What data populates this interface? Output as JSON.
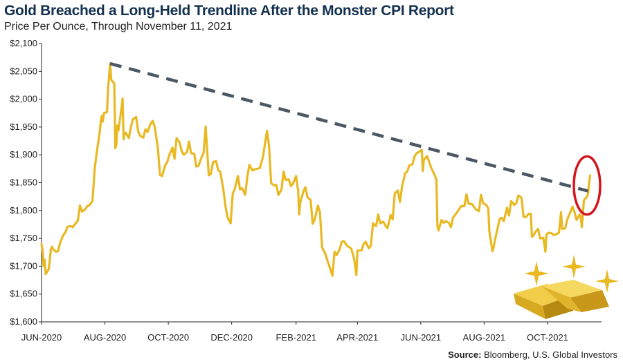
{
  "title": "Gold Breached a Long-Held Trendline After the Monster CPI Report",
  "subtitle": "Price Per Ounce, Through November 11, 2021",
  "source_label": "Source:",
  "source_text": " Bloomberg, U.S. Global Investors",
  "colors": {
    "line": "#e8b923",
    "trend": "#4b5863",
    "circle": "#d4161c",
    "title": "#14314f"
  },
  "icons": [
    "gold-bars-icon",
    "sparkle-icon"
  ],
  "chart_data": {
    "type": "line",
    "title": "Gold Breached a Long-Held Trendline After the Monster CPI Report",
    "subtitle": "Price Per Ounce, Through November 11, 2021",
    "xlabel": "",
    "ylabel": "",
    "ylim": [
      1600,
      2100
    ],
    "xlim": [
      "2020-06-01",
      "2021-11-22"
    ],
    "grid": false,
    "x_tick_labels": [
      {
        "date": "2020-06-01",
        "label": "JUN-2020"
      },
      {
        "date": "2020-08-01",
        "label": "AUG-2020"
      },
      {
        "date": "2020-10-01",
        "label": "OCT-2020"
      },
      {
        "date": "2020-12-01",
        "label": "DEC-2020"
      },
      {
        "date": "2021-02-01",
        "label": "FEB-2021"
      },
      {
        "date": "2021-04-01",
        "label": "APR-2021"
      },
      {
        "date": "2021-06-01",
        "label": "JUN-2021"
      },
      {
        "date": "2021-08-01",
        "label": "AUG-2021"
      },
      {
        "date": "2021-10-01",
        "label": "OCT-2021"
      }
    ],
    "y_tick_labels": [
      "$1,600",
      "$1,650",
      "$1,700",
      "$1,750",
      "$1,800",
      "$1,850",
      "$1,900",
      "$1,950",
      "$2,000",
      "$2,050",
      "$2,100"
    ],
    "y_ticks": [
      1600,
      1650,
      1700,
      1750,
      1800,
      1850,
      1900,
      1950,
      2000,
      2050,
      2100
    ],
    "series": [
      {
        "points": [
          [
            "2020-06-01",
            1740
          ],
          [
            "2020-06-02",
            1728
          ],
          [
            "2020-06-03",
            1700
          ],
          [
            "2020-06-04",
            1712
          ],
          [
            "2020-06-05",
            1686
          ],
          [
            "2020-06-08",
            1695
          ],
          [
            "2020-06-09",
            1712
          ],
          [
            "2020-06-10",
            1730
          ],
          [
            "2020-06-11",
            1735
          ],
          [
            "2020-06-12",
            1731
          ],
          [
            "2020-06-15",
            1726
          ],
          [
            "2020-06-17",
            1727
          ],
          [
            "2020-06-19",
            1743
          ],
          [
            "2020-06-22",
            1756
          ],
          [
            "2020-06-24",
            1761
          ],
          [
            "2020-06-26",
            1771
          ],
          [
            "2020-06-29",
            1772
          ],
          [
            "2020-07-01",
            1770
          ],
          [
            "2020-07-03",
            1775
          ],
          [
            "2020-07-06",
            1782
          ],
          [
            "2020-07-08",
            1809
          ],
          [
            "2020-07-10",
            1798
          ],
          [
            "2020-07-13",
            1802
          ],
          [
            "2020-07-15",
            1808
          ],
          [
            "2020-07-17",
            1809
          ],
          [
            "2020-07-20",
            1817
          ],
          [
            "2020-07-21",
            1842
          ],
          [
            "2020-07-22",
            1871
          ],
          [
            "2020-07-23",
            1887
          ],
          [
            "2020-07-24",
            1902
          ],
          [
            "2020-07-27",
            1941
          ],
          [
            "2020-07-28",
            1960
          ],
          [
            "2020-07-29",
            1970
          ],
          [
            "2020-07-30",
            1960
          ],
          [
            "2020-07-31",
            1975
          ],
          [
            "2020-08-03",
            1977
          ],
          [
            "2020-08-04",
            2019
          ],
          [
            "2020-08-05",
            2042
          ],
          [
            "2020-08-06",
            2064
          ],
          [
            "2020-08-07",
            2035
          ],
          [
            "2020-08-10",
            2028
          ],
          [
            "2020-08-11",
            1912
          ],
          [
            "2020-08-12",
            1918
          ],
          [
            "2020-08-13",
            1953
          ],
          [
            "2020-08-14",
            1944
          ],
          [
            "2020-08-17",
            1985
          ],
          [
            "2020-08-18",
            2001
          ],
          [
            "2020-08-19",
            1928
          ],
          [
            "2020-08-20",
            1939
          ],
          [
            "2020-08-21",
            1940
          ],
          [
            "2020-08-24",
            1930
          ],
          [
            "2020-08-26",
            1950
          ],
          [
            "2020-08-28",
            1964
          ],
          [
            "2020-08-31",
            1968
          ],
          [
            "2020-09-02",
            1942
          ],
          [
            "2020-09-04",
            1934
          ],
          [
            "2020-09-07",
            1931
          ],
          [
            "2020-09-09",
            1946
          ],
          [
            "2020-09-11",
            1941
          ],
          [
            "2020-09-14",
            1956
          ],
          [
            "2020-09-16",
            1961
          ],
          [
            "2020-09-18",
            1950
          ],
          [
            "2020-09-21",
            1912
          ],
          [
            "2020-09-23",
            1864
          ],
          [
            "2020-09-25",
            1862
          ],
          [
            "2020-09-28",
            1881
          ],
          [
            "2020-09-30",
            1887
          ],
          [
            "2020-10-02",
            1900
          ],
          [
            "2020-10-05",
            1913
          ],
          [
            "2020-10-07",
            1893
          ],
          [
            "2020-10-09",
            1930
          ],
          [
            "2020-10-12",
            1922
          ],
          [
            "2020-10-14",
            1906
          ],
          [
            "2020-10-16",
            1900
          ],
          [
            "2020-10-19",
            1905
          ],
          [
            "2020-10-21",
            1924
          ],
          [
            "2020-10-23",
            1903
          ],
          [
            "2020-10-26",
            1902
          ],
          [
            "2020-10-28",
            1879
          ],
          [
            "2020-10-30",
            1880
          ],
          [
            "2020-11-02",
            1895
          ],
          [
            "2020-11-04",
            1903
          ],
          [
            "2020-11-06",
            1951
          ],
          [
            "2020-11-09",
            1863
          ],
          [
            "2020-11-11",
            1866
          ],
          [
            "2020-11-13",
            1887
          ],
          [
            "2020-11-16",
            1889
          ],
          [
            "2020-11-18",
            1872
          ],
          [
            "2020-11-20",
            1870
          ],
          [
            "2020-11-23",
            1837
          ],
          [
            "2020-11-25",
            1808
          ],
          [
            "2020-11-27",
            1788
          ],
          [
            "2020-11-30",
            1777
          ],
          [
            "2020-12-02",
            1830
          ],
          [
            "2020-12-04",
            1839
          ],
          [
            "2020-12-07",
            1862
          ],
          [
            "2020-12-09",
            1838
          ],
          [
            "2020-12-11",
            1840
          ],
          [
            "2020-12-14",
            1828
          ],
          [
            "2020-12-16",
            1860
          ],
          [
            "2020-12-18",
            1882
          ],
          [
            "2020-12-21",
            1872
          ],
          [
            "2020-12-23",
            1874
          ],
          [
            "2020-12-28",
            1876
          ],
          [
            "2020-12-31",
            1895
          ],
          [
            "2021-01-04",
            1943
          ],
          [
            "2021-01-06",
            1915
          ],
          [
            "2021-01-08",
            1849
          ],
          [
            "2021-01-11",
            1845
          ],
          [
            "2021-01-13",
            1846
          ],
          [
            "2021-01-15",
            1828
          ],
          [
            "2021-01-18",
            1838
          ],
          [
            "2021-01-20",
            1870
          ],
          [
            "2021-01-22",
            1855
          ],
          [
            "2021-01-25",
            1856
          ],
          [
            "2021-01-27",
            1844
          ],
          [
            "2021-01-29",
            1848
          ],
          [
            "2021-02-01",
            1862
          ],
          [
            "2021-02-03",
            1835
          ],
          [
            "2021-02-04",
            1793
          ],
          [
            "2021-02-05",
            1814
          ],
          [
            "2021-02-08",
            1834
          ],
          [
            "2021-02-10",
            1842
          ],
          [
            "2021-02-12",
            1824
          ],
          [
            "2021-02-15",
            1819
          ],
          [
            "2021-02-17",
            1776
          ],
          [
            "2021-02-19",
            1784
          ],
          [
            "2021-02-22",
            1809
          ],
          [
            "2021-02-24",
            1797
          ],
          [
            "2021-02-26",
            1734
          ],
          [
            "2021-03-01",
            1723
          ],
          [
            "2021-03-03",
            1711
          ],
          [
            "2021-03-05",
            1700
          ],
          [
            "2021-03-08",
            1683
          ],
          [
            "2021-03-10",
            1726
          ],
          [
            "2021-03-12",
            1720
          ],
          [
            "2021-03-15",
            1731
          ],
          [
            "2021-03-17",
            1744
          ],
          [
            "2021-03-19",
            1745
          ],
          [
            "2021-03-22",
            1737
          ],
          [
            "2021-03-24",
            1734
          ],
          [
            "2021-03-26",
            1732
          ],
          [
            "2021-03-29",
            1712
          ],
          [
            "2021-03-31",
            1684
          ],
          [
            "2021-04-01",
            1728
          ],
          [
            "2021-04-05",
            1728
          ],
          [
            "2021-04-07",
            1740
          ],
          [
            "2021-04-09",
            1744
          ],
          [
            "2021-04-12",
            1732
          ],
          [
            "2021-04-14",
            1737
          ],
          [
            "2021-04-16",
            1777
          ],
          [
            "2021-04-19",
            1772
          ],
          [
            "2021-04-21",
            1793
          ],
          [
            "2021-04-23",
            1777
          ],
          [
            "2021-04-26",
            1780
          ],
          [
            "2021-04-28",
            1773
          ],
          [
            "2021-04-30",
            1768
          ],
          [
            "2021-05-03",
            1792
          ],
          [
            "2021-05-05",
            1784
          ],
          [
            "2021-05-07",
            1831
          ],
          [
            "2021-05-10",
            1836
          ],
          [
            "2021-05-12",
            1815
          ],
          [
            "2021-05-14",
            1843
          ],
          [
            "2021-05-17",
            1867
          ],
          [
            "2021-05-19",
            1870
          ],
          [
            "2021-05-21",
            1881
          ],
          [
            "2021-05-24",
            1883
          ],
          [
            "2021-05-26",
            1897
          ],
          [
            "2021-05-28",
            1903
          ],
          [
            "2021-05-31",
            1906
          ],
          [
            "2021-06-02",
            1909
          ],
          [
            "2021-06-03",
            1871
          ],
          [
            "2021-06-04",
            1891
          ],
          [
            "2021-06-07",
            1898
          ],
          [
            "2021-06-09",
            1888
          ],
          [
            "2021-06-11",
            1877
          ],
          [
            "2021-06-14",
            1865
          ],
          [
            "2021-06-16",
            1856
          ],
          [
            "2021-06-17",
            1773
          ],
          [
            "2021-06-18",
            1764
          ],
          [
            "2021-06-21",
            1783
          ],
          [
            "2021-06-23",
            1778
          ],
          [
            "2021-06-25",
            1781
          ],
          [
            "2021-06-28",
            1778
          ],
          [
            "2021-06-30",
            1770
          ],
          [
            "2021-07-02",
            1787
          ],
          [
            "2021-07-06",
            1797
          ],
          [
            "2021-07-08",
            1803
          ],
          [
            "2021-07-10",
            1808
          ],
          [
            "2021-07-13",
            1808
          ],
          [
            "2021-07-15",
            1829
          ],
          [
            "2021-07-17",
            1812
          ],
          [
            "2021-07-20",
            1812
          ],
          [
            "2021-07-22",
            1807
          ],
          [
            "2021-07-24",
            1802
          ],
          [
            "2021-07-27",
            1799
          ],
          [
            "2021-07-29",
            1828
          ],
          [
            "2021-07-31",
            1813
          ],
          [
            "2021-08-03",
            1810
          ],
          [
            "2021-08-05",
            1804
          ],
          [
            "2021-08-06",
            1763
          ],
          [
            "2021-08-09",
            1727
          ],
          [
            "2021-08-10",
            1733
          ],
          [
            "2021-08-12",
            1752
          ],
          [
            "2021-08-16",
            1785
          ],
          [
            "2021-08-18",
            1787
          ],
          [
            "2021-08-20",
            1781
          ],
          [
            "2021-08-23",
            1805
          ],
          [
            "2021-08-25",
            1791
          ],
          [
            "2021-08-27",
            1817
          ],
          [
            "2021-08-30",
            1810
          ],
          [
            "2021-09-01",
            1813
          ],
          [
            "2021-09-03",
            1827
          ],
          [
            "2021-09-06",
            1823
          ],
          [
            "2021-09-08",
            1789
          ],
          [
            "2021-09-10",
            1788
          ],
          [
            "2021-09-13",
            1794
          ],
          [
            "2021-09-15",
            1794
          ],
          [
            "2021-09-16",
            1753
          ],
          [
            "2021-09-17",
            1754
          ],
          [
            "2021-09-20",
            1763
          ],
          [
            "2021-09-22",
            1767
          ],
          [
            "2021-09-24",
            1750
          ],
          [
            "2021-09-27",
            1751
          ],
          [
            "2021-09-29",
            1726
          ],
          [
            "2021-09-30",
            1757
          ],
          [
            "2021-10-02",
            1760
          ],
          [
            "2021-10-05",
            1759
          ],
          [
            "2021-10-07",
            1756
          ],
          [
            "2021-10-09",
            1757
          ],
          [
            "2021-10-12",
            1760
          ],
          [
            "2021-10-14",
            1797
          ],
          [
            "2021-10-15",
            1767
          ],
          [
            "2021-10-18",
            1768
          ],
          [
            "2021-10-20",
            1784
          ],
          [
            "2021-10-22",
            1793
          ],
          [
            "2021-10-25",
            1807
          ],
          [
            "2021-10-27",
            1797
          ],
          [
            "2021-10-29",
            1783
          ],
          [
            "2021-11-01",
            1793
          ],
          [
            "2021-11-02",
            1788
          ],
          [
            "2021-11-03",
            1770
          ],
          [
            "2021-11-04",
            1793
          ],
          [
            "2021-11-05",
            1818
          ],
          [
            "2021-11-08",
            1825
          ],
          [
            "2021-11-09",
            1830
          ],
          [
            "2021-11-10",
            1849
          ],
          [
            "2021-11-11",
            1863
          ]
        ]
      }
    ],
    "trendline": {
      "start": [
        "2020-08-06",
        2064
      ],
      "end": [
        "2021-11-09",
        1835
      ],
      "style": "dashed"
    },
    "annotations": [
      {
        "type": "circle",
        "date": "2021-11-08",
        "value": 1845,
        "color": "#d4161c"
      }
    ]
  }
}
